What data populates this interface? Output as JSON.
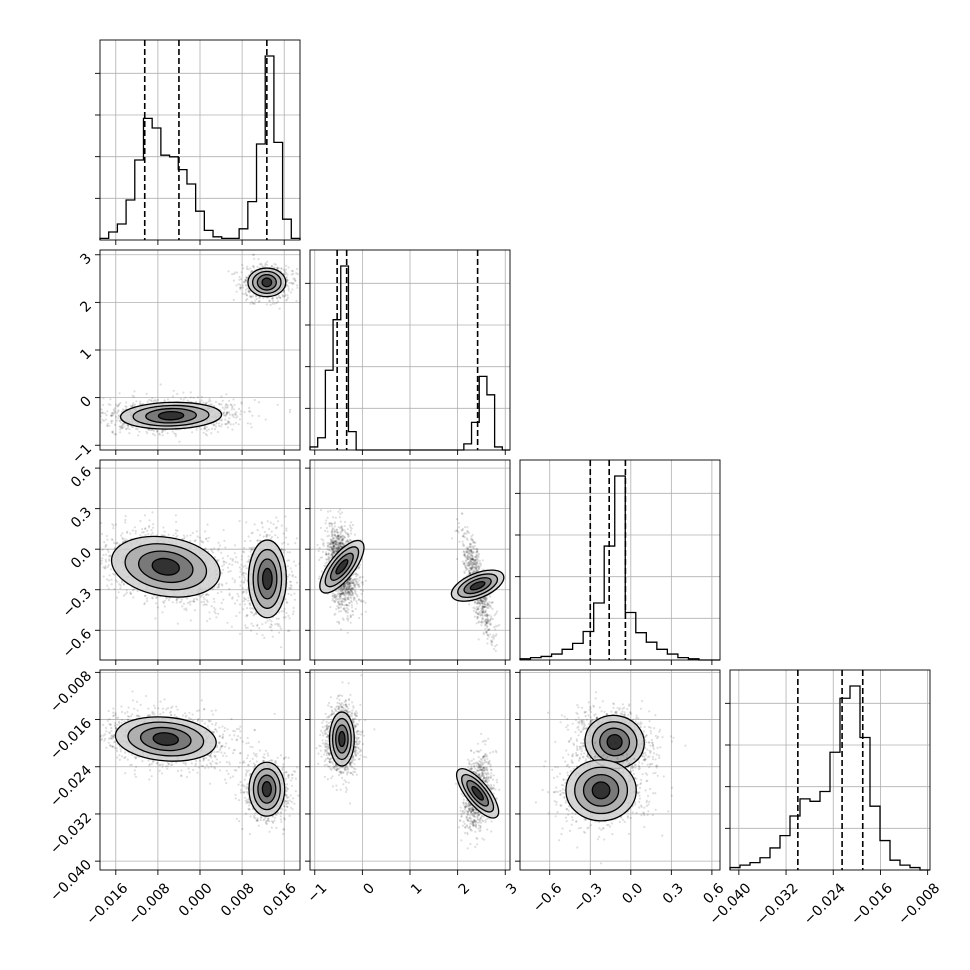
{
  "chart_data": {
    "type": "corner",
    "grid": true,
    "panel_frame_color": "#000000",
    "grid_color": "#b0b0b0",
    "histogram_color": "#000000",
    "contour_color": "#000000",
    "sample_color": "#000000",
    "parameters": [
      {
        "range": [
          -0.019,
          0.019
        ],
        "ticks": [
          -0.016,
          -0.008,
          0.0,
          0.008,
          0.016
        ],
        "tick_labels": [
          "−0.016",
          "−0.008",
          "0.000",
          "0.008",
          "0.016"
        ],
        "quantiles": [
          -0.0105,
          -0.004,
          0.0127
        ]
      },
      {
        "range": [
          -1.1,
          3.1
        ],
        "ticks": [
          -1,
          0,
          1,
          2,
          3
        ],
        "tick_labels": [
          "−1",
          "0",
          "1",
          "2",
          "3"
        ],
        "quantiles": [
          -0.53,
          -0.33,
          2.42
        ]
      },
      {
        "range": [
          -0.82,
          0.66
        ],
        "ticks": [
          -0.6,
          -0.3,
          0.0,
          0.3,
          0.6
        ],
        "tick_labels": [
          "−0.6",
          "−0.3",
          "0.0",
          "0.3",
          "0.6"
        ],
        "quantiles": [
          -0.3,
          -0.16,
          -0.04
        ]
      },
      {
        "range": [
          -0.0415,
          -0.0076
        ],
        "ticks": [
          -0.04,
          -0.032,
          -0.024,
          -0.016,
          -0.008
        ],
        "tick_labels": [
          "−0.040",
          "−0.032",
          "−0.024",
          "−0.016",
          "−0.008"
        ],
        "quantiles": [
          -0.03,
          -0.0225,
          -0.019
        ]
      }
    ],
    "histograms": [
      {
        "param": 0,
        "bins": [
          -0.019,
          0.019
        ],
        "counts": [
          1,
          5,
          10,
          25,
          50,
          76,
          70,
          53,
          52,
          44,
          35,
          18,
          6,
          2,
          1,
          1,
          7,
          24,
          60,
          115,
          61,
          13,
          1
        ]
      },
      {
        "param": 1,
        "bins": [
          -1.1,
          3.1
        ],
        "counts": [
          2,
          8,
          52,
          85,
          120,
          12,
          0,
          0,
          0,
          0,
          0,
          0,
          0,
          0,
          0,
          0,
          0,
          0,
          0,
          0,
          4,
          18,
          48,
          36,
          2,
          0
        ]
      },
      {
        "param": 2,
        "bins": [
          -0.82,
          0.66
        ],
        "counts": [
          1,
          2,
          3,
          5,
          9,
          14,
          24,
          48,
          96,
          155,
          40,
          23,
          15,
          9,
          5,
          2,
          1,
          0,
          0
        ]
      },
      {
        "param": 3,
        "bins": [
          -0.0415,
          -0.0076
        ],
        "counts": [
          1,
          2,
          3,
          5,
          9,
          14,
          22,
          29,
          28,
          32,
          48,
          70,
          75,
          54,
          26,
          12,
          4,
          2,
          1,
          0
        ]
      }
    ],
    "density_panels": [
      {
        "x": 0,
        "y": 1,
        "modes": [
          {
            "cx": -0.0055,
            "cy": -0.38,
            "sx": 0.0048,
            "sy": 0.13,
            "rho": 0.1,
            "weight": 0.64
          },
          {
            "cx": 0.0127,
            "cy": 2.42,
            "sx": 0.0018,
            "sy": 0.14,
            "rho": 0.0,
            "weight": 0.36
          }
        ]
      },
      {
        "x": 0,
        "y": 2,
        "modes": [
          {
            "cx": -0.0065,
            "cy": -0.13,
            "sx": 0.0052,
            "sy": 0.11,
            "rho": -0.3,
            "weight": 0.64
          },
          {
            "cx": 0.0128,
            "cy": -0.22,
            "sx": 0.0018,
            "sy": 0.14,
            "rho": 0.0,
            "weight": 0.36
          }
        ]
      },
      {
        "x": 1,
        "y": 2,
        "modes": [
          {
            "cx": -0.43,
            "cy": -0.13,
            "sx": 0.13,
            "sy": 0.12,
            "rho": -0.3,
            "weight": 0.64
          },
          {
            "cx": 2.42,
            "cy": -0.27,
            "sx": 0.13,
            "sy": 0.15,
            "rho": -0.75,
            "weight": 0.36
          }
        ]
      },
      {
        "x": 0,
        "y": 3,
        "modes": [
          {
            "cx": -0.0065,
            "cy": -0.0193,
            "sx": 0.0048,
            "sy": 0.0018,
            "rho": -0.2,
            "weight": 0.64
          },
          {
            "cx": 0.0127,
            "cy": -0.0278,
            "sx": 0.0017,
            "sy": 0.0022,
            "rho": 0.0,
            "weight": 0.36
          }
        ]
      },
      {
        "x": 1,
        "y": 3,
        "modes": [
          {
            "cx": -0.43,
            "cy": -0.0193,
            "sx": 0.13,
            "sy": 0.0022,
            "rho": 0.0,
            "weight": 0.64
          },
          {
            "cx": 2.42,
            "cy": -0.0285,
            "sx": 0.12,
            "sy": 0.0026,
            "rho": 0.3,
            "weight": 0.36
          }
        ]
      },
      {
        "x": 2,
        "y": 3,
        "modes": [
          {
            "cx": -0.12,
            "cy": -0.0198,
            "sx": 0.11,
            "sy": 0.0022,
            "rho": -0.2,
            "weight": 0.64
          },
          {
            "cx": -0.22,
            "cy": -0.028,
            "sx": 0.13,
            "sy": 0.0025,
            "rho": 0.0,
            "weight": 0.36
          }
        ]
      }
    ],
    "contour_levels_sigma": [
      0.5,
      1.0,
      1.5,
      2.0
    ]
  }
}
